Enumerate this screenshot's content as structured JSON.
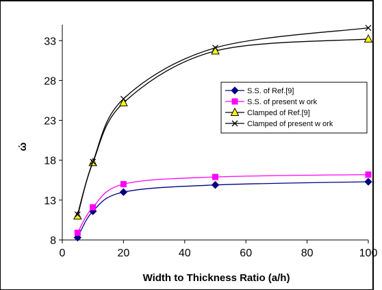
{
  "chart_data": {
    "type": "line",
    "title": "",
    "xlabel": "Width to Thickness Ratio (a/h)",
    "ylabel": "ώ",
    "xlim": [
      0,
      100
    ],
    "ylim": [
      8,
      35
    ],
    "x_ticks": [
      0,
      20,
      40,
      60,
      80,
      100
    ],
    "y_ticks": [
      8,
      13,
      18,
      23,
      28,
      33
    ],
    "grid": false,
    "legend_position": "right-middle",
    "series": [
      {
        "name": "S.S. of Ref.[9]",
        "color": "#000080",
        "marker": "diamond",
        "x": [
          5,
          10,
          20,
          50,
          100
        ],
        "y": [
          8.3,
          11.6,
          14.0,
          14.9,
          15.3
        ]
      },
      {
        "name": "S.S. of present w ork",
        "color": "#ff00ff",
        "marker": "square",
        "x": [
          5,
          10,
          20,
          50,
          100
        ],
        "y": [
          8.9,
          12.1,
          15.0,
          15.9,
          16.2
        ]
      },
      {
        "name": "Clamped of Ref.[9]",
        "color": "#000000",
        "marker": "triangle",
        "marker_fill": "#ffff00",
        "x": [
          5,
          10,
          20,
          50,
          100
        ],
        "y": [
          11.0,
          17.7,
          25.2,
          31.7,
          33.2
        ]
      },
      {
        "name": "Clamped of present w ork",
        "color": "#000000",
        "marker": "x",
        "x": [
          5,
          10,
          20,
          50,
          100
        ],
        "y": [
          11.2,
          17.8,
          25.7,
          32.1,
          34.6
        ]
      }
    ]
  }
}
